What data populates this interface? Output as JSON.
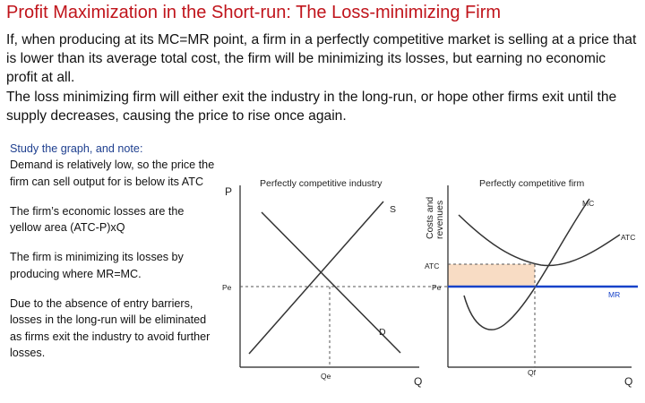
{
  "title": "Profit Maximization in the Short-run: The Loss-minimizing Firm",
  "intro": {
    "p1": "If, when producing at its MC=MR point, a firm in a perfectly competitive market is selling at a price that is lower than its average total cost, the firm will be minimizing its losses, but earning no economic profit at all.",
    "p2": "The loss minimizing firm will either exit the industry in the long-run, or hope other firms exit until the supply decreases, causing the price to rise once again."
  },
  "notes": {
    "heading": "Study the graph, and note:",
    "demand": "Demand is relatively low, so the price the firm can sell output for is below its ATC",
    "losses": "The firm’s economic losses are the yellow area (ATC-P)xQ",
    "mrmc": "The firm is minimizing its losses by producing where MR=MC.",
    "entry": "Due to the absence of entry barriers, losses in the long-run will be eliminated as firms exit the industry to avoid further losses."
  },
  "industry_graph": {
    "title": "Perfectly competitive industry",
    "y_axis": "P",
    "x_axis": "Q",
    "price_label": "Pe",
    "qty_label": "Qe",
    "supply_label": "S",
    "demand_label": "D"
  },
  "firm_graph": {
    "title": "Perfectly competitive firm",
    "y_axis_line1": "Costs and",
    "y_axis_line2": "revenues",
    "x_axis": "Q",
    "mc_label": "MC",
    "atc_curve_label": "ATC",
    "atc_axis_label": "ATC",
    "price_label": "Pe",
    "mr_label": "MR",
    "qty_label": "Qf"
  },
  "colors": {
    "title": "#c0141b",
    "notes_heading": "#1e3f8f",
    "mr_line": "#1742c9",
    "loss_area": "#f8dcc4"
  }
}
